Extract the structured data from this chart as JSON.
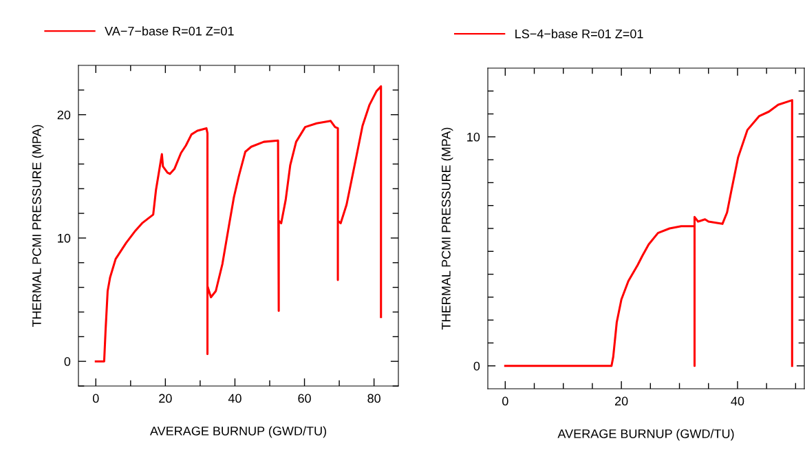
{
  "chart_data": [
    {
      "type": "line",
      "xlabel": "AVERAGE BURNUP (GWD/TU)",
      "ylabel": "THERMAL PCMI PRESSURE (MPA)",
      "legend": "top",
      "grid": false,
      "marker": "none",
      "line_style": "solid",
      "xlim": [
        -5,
        87
      ],
      "ylim": [
        -2,
        24
      ],
      "xticks": [
        0,
        {
          "value": 10,
          "label": null
        },
        20,
        {
          "value": 30,
          "label": null
        },
        40,
        {
          "value": 50,
          "label": null
        },
        60,
        {
          "value": 70,
          "label": null
        },
        80
      ],
      "yticks": [
        {
          "value": -2,
          "label": null
        },
        0,
        {
          "value": 2,
          "label": null
        },
        {
          "value": 4,
          "label": null
        },
        {
          "value": 6,
          "label": null
        },
        {
          "value": 8,
          "label": null
        },
        10,
        {
          "value": 12,
          "label": null
        },
        {
          "value": 14,
          "label": null
        },
        {
          "value": 16,
          "label": null
        },
        {
          "value": 18,
          "label": null
        },
        20,
        {
          "value": 22,
          "label": null
        }
      ],
      "series": [
        {
          "name": "VA−7−base R=01 Z=01",
          "color": "#ff0000",
          "x": [
            0,
            2.4,
            2.8,
            3.4,
            4.1,
            5.7,
            8.7,
            11.4,
            13.3,
            16.5,
            17.3,
            18.3,
            19.0,
            19.3,
            20.6,
            21.3,
            22.6,
            24.5,
            25.9,
            27.5,
            29.2,
            31.8,
            32.1,
            32.1,
            32.1,
            33.1,
            34.5,
            36.4,
            38.4,
            39.7,
            41.1,
            43.0,
            44.7,
            48.3,
            52.4,
            52.6,
            52.6,
            53.3,
            54.6,
            55.9,
            57.6,
            60.2,
            63.5,
            67.5,
            68.8,
            69.6,
            69.6,
            69.6,
            70.4,
            72.1,
            74.7,
            76.7,
            78.7,
            80.7,
            82.0,
            82.0
          ],
          "values": [
            0,
            0,
            2.5,
            5.7,
            6.8,
            8.3,
            9.6,
            10.6,
            11.2,
            11.9,
            13.9,
            15.6,
            16.8,
            15.8,
            15.3,
            15.2,
            15.6,
            16.9,
            17.5,
            18.4,
            18.7,
            18.9,
            18.5,
            0.6,
            6.1,
            5.2,
            5.7,
            7.9,
            11.2,
            13.3,
            15.0,
            17.0,
            17.4,
            17.8,
            17.9,
            4.1,
            11.4,
            11.2,
            13.1,
            15.9,
            17.8,
            19.0,
            19.3,
            19.5,
            19.0,
            18.9,
            6.6,
            11.4,
            11.2,
            12.7,
            16.3,
            19.1,
            20.8,
            21.9,
            22.3,
            3.6
          ]
        }
      ]
    },
    {
      "type": "line",
      "xlabel": "AVERAGE BURNUP (GWD/TU)",
      "ylabel": "THERMAL PCMI PRESSURE (MPA)",
      "legend": "top",
      "grid": false,
      "marker": "none",
      "line_style": "solid",
      "xlim": [
        -3,
        51.5
      ],
      "ylim": [
        -1,
        13
      ],
      "xticks": [
        0,
        {
          "value": 5,
          "label": null
        },
        {
          "value": 10,
          "label": null
        },
        {
          "value": 15,
          "label": null
        },
        20,
        {
          "value": 25,
          "label": null
        },
        {
          "value": 30,
          "label": null
        },
        {
          "value": 35,
          "label": null
        },
        40,
        {
          "value": 45,
          "label": null
        },
        {
          "value": 50,
          "label": null
        }
      ],
      "yticks": [
        0,
        {
          "value": 1,
          "label": null
        },
        {
          "value": 2,
          "label": null
        },
        {
          "value": 3,
          "label": null
        },
        {
          "value": 4,
          "label": null
        },
        {
          "value": 5,
          "label": null
        },
        {
          "value": 6,
          "label": null
        },
        {
          "value": 7,
          "label": null
        },
        {
          "value": 8,
          "label": null
        },
        {
          "value": 9,
          "label": null
        },
        10,
        {
          "value": 11,
          "label": null
        },
        {
          "value": 12,
          "label": null
        }
      ],
      "series": [
        {
          "name": "LS−4−base R=01 Z=01",
          "color": "#ff0000",
          "x": [
            0,
            18.3,
            18.6,
            19.2,
            20.0,
            21.2,
            22.8,
            23.6,
            24.7,
            26.3,
            28.3,
            30.3,
            32.4,
            32.6,
            32.6,
            32.6,
            33.2,
            34.4,
            35.0,
            37.4,
            38.2,
            38.9,
            40.1,
            41.7,
            43.7,
            45.4,
            47.0,
            49.4,
            49.4
          ],
          "values": [
            0,
            0,
            0.4,
            1.9,
            2.9,
            3.7,
            4.4,
            4.8,
            5.3,
            5.8,
            6.0,
            6.1,
            6.1,
            6.1,
            0,
            6.5,
            6.3,
            6.4,
            6.3,
            6.2,
            6.7,
            7.6,
            9.1,
            10.3,
            10.9,
            11.1,
            11.4,
            11.6,
            0
          ]
        }
      ]
    }
  ]
}
